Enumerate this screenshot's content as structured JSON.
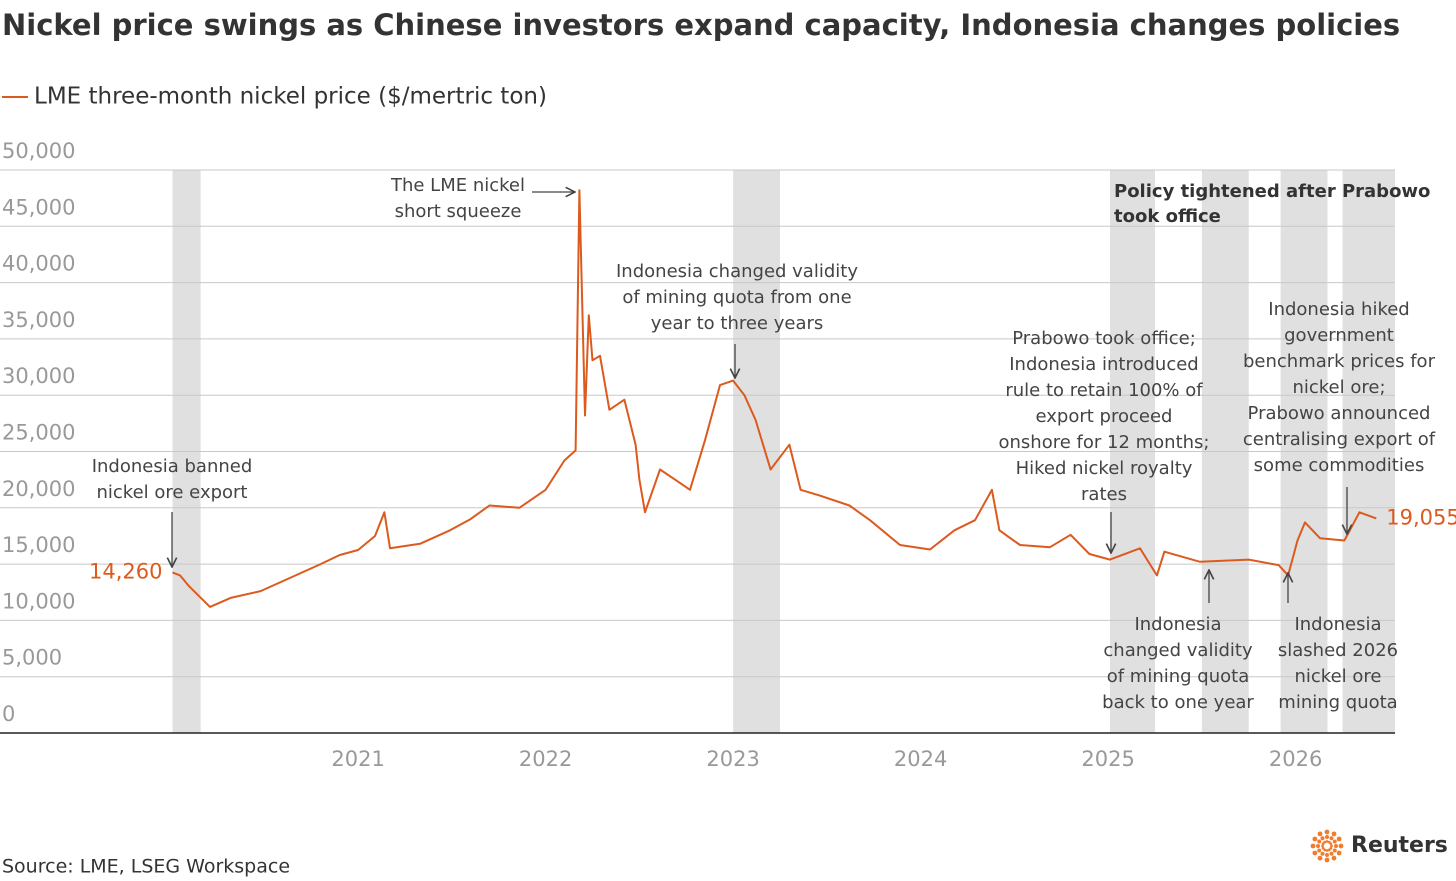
{
  "chart_data": {
    "type": "line",
    "title": "Nickel price swings as Chinese investors expand capacity, Indonesia changes policies",
    "x": [
      2020.01,
      2020.05,
      2020.1,
      2020.21,
      2020.32,
      2020.48,
      2020.64,
      2020.8,
      2020.9,
      2021.0,
      2021.09,
      2021.14,
      2021.17,
      2021.33,
      2021.49,
      2021.6,
      2021.7,
      2021.86,
      2022.0,
      2022.1,
      2022.16,
      2022.18,
      2022.21,
      2022.23,
      2022.25,
      2022.29,
      2022.34,
      2022.42,
      2022.48,
      2022.5,
      2022.53,
      2022.61,
      2022.69,
      2022.77,
      2022.85,
      2022.93,
      2023.0,
      2023.06,
      2023.12,
      2023.2,
      2023.3,
      2023.36,
      2023.46,
      2023.62,
      2023.73,
      2023.89,
      2024.05,
      2024.18,
      2024.29,
      2024.38,
      2024.42,
      2024.53,
      2024.69,
      2024.8,
      2024.9,
      2025.01,
      2025.17,
      2025.26,
      2025.3,
      2025.49,
      2025.75,
      2025.91,
      2025.96,
      2026.01,
      2026.05,
      2026.13,
      2026.26,
      2026.34,
      2026.43
    ],
    "series": [
      {
        "name": "LME three-month nickel price ($/mertric ton)",
        "color": "#dc5a1e",
        "values": [
          14260,
          14000,
          13000,
          11200,
          12000,
          12600,
          13800,
          15000,
          15800,
          16250,
          17500,
          19600,
          16400,
          16800,
          18000,
          19000,
          20200,
          20000,
          21600,
          24200,
          25100,
          48200,
          28200,
          37100,
          33100,
          33500,
          28700,
          29600,
          25600,
          22500,
          19600,
          23400,
          22500,
          21600,
          26000,
          30900,
          31300,
          30000,
          27800,
          23400,
          25600,
          21600,
          21100,
          20200,
          18900,
          16700,
          16300,
          18000,
          18900,
          21600,
          18000,
          16700,
          16500,
          17600,
          15900,
          15400,
          16400,
          14000,
          16100,
          15200,
          15400,
          14900,
          14000,
          17100,
          18700,
          17300,
          17100,
          19600,
          19055
        ],
        "value_labels": [
          "14,260",
          null,
          null,
          null,
          null,
          null,
          null,
          null,
          null,
          null,
          null,
          null,
          null,
          null,
          null,
          null,
          null,
          null,
          null,
          null,
          null,
          null,
          null,
          null,
          null,
          null,
          null,
          null,
          null,
          null,
          null,
          null,
          null,
          null,
          null,
          null,
          null,
          null,
          null,
          null,
          null,
          null,
          null,
          null,
          null,
          null,
          null,
          null,
          null,
          null,
          null,
          null,
          null,
          null,
          null,
          null,
          null,
          null,
          null,
          null,
          null,
          null,
          null,
          null,
          null,
          null,
          null,
          null,
          "19,055"
        ]
      }
    ],
    "xlim": [
      2019.09,
      2026.53
    ],
    "xticks": [
      2021,
      2022,
      2023,
      2024,
      2025,
      2026
    ],
    "ylim": [
      0,
      50000
    ],
    "yticks": [
      0,
      {
        "value": 5000,
        "label": "5,000"
      },
      {
        "value": 10000,
        "label": "10,000"
      },
      {
        "value": 15000,
        "label": "15,000"
      },
      {
        "value": 20000,
        "label": "20,000"
      },
      {
        "value": 25000,
        "label": "25,000"
      },
      {
        "value": 30000,
        "label": "30,000"
      },
      {
        "value": 35000,
        "label": "35,000"
      },
      {
        "value": 40000,
        "label": "40,000"
      },
      {
        "value": 45000,
        "label": "45,000"
      },
      {
        "value": 50000,
        "label": "50,000"
      }
    ],
    "grid": true,
    "shaded_periods": [
      [
        2020.01,
        2020.16
      ],
      [
        2023.0,
        2023.25
      ],
      [
        2025.01,
        2025.25
      ],
      [
        2025.5,
        2025.75
      ],
      [
        2025.92,
        2026.17
      ],
      [
        2026.25,
        2026.53
      ]
    ],
    "annotations": [
      [
        "Indonesia banned",
        "nickel ore export"
      ],
      [
        "The LME nickel",
        "short squeeze"
      ],
      [
        "Indonesia changed validity",
        "of mining quota from one",
        "year to three years"
      ],
      [
        "Prabowo took office;",
        "Indonesia introduced",
        "rule to retain 100% of",
        "export proceed",
        "onshore for 12 months;",
        "Hiked nickel royalty",
        "rates"
      ],
      [
        "Indonesia",
        "changed validity",
        "of mining quota",
        "back to one year"
      ],
      [
        "Indonesia",
        "slashed 2026",
        "nickel ore",
        "mining quota"
      ],
      [
        "Indonesia hiked",
        "government",
        "benchmark prices for",
        "nickel ore;",
        "Prabowo announced",
        "centralising export of",
        "some commodities"
      ],
      [
        "Policy tightened after Prabowo",
        "took office"
      ]
    ],
    "source": "Source: LME, LSEG Workspace",
    "brand": "Reuters"
  }
}
